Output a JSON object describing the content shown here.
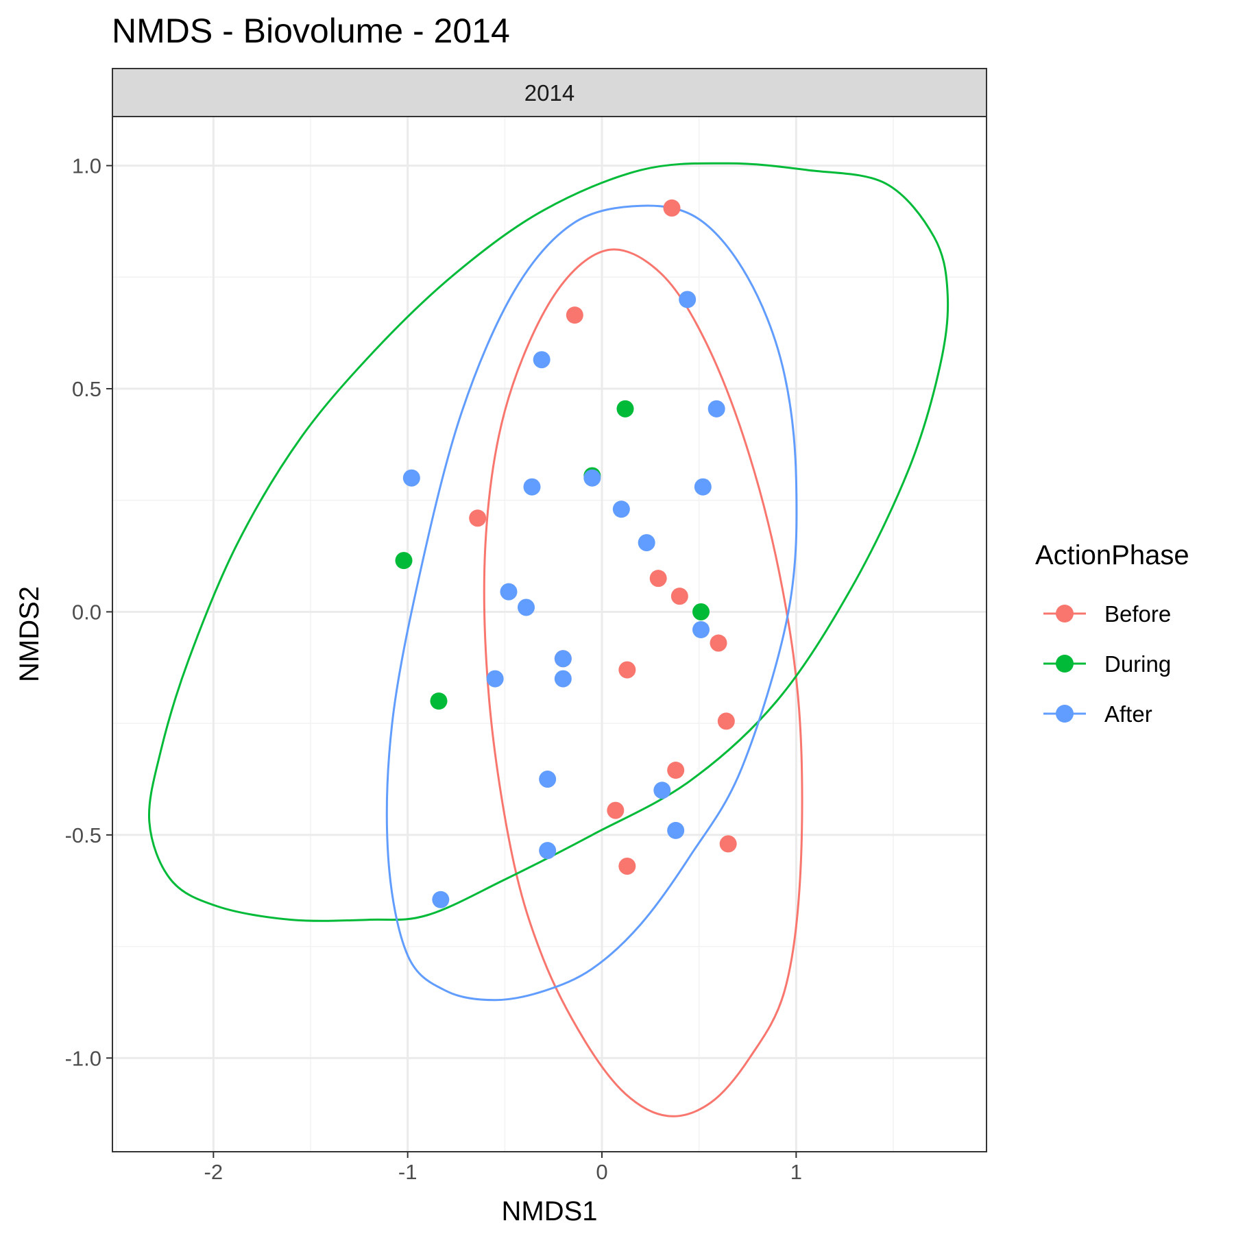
{
  "chart_data": {
    "type": "scatter",
    "title": "NMDS - Biovolume - 2014",
    "facet_label": "2014",
    "xlabel": "NMDS1",
    "ylabel": "NMDS2",
    "xlim": [
      -2.52,
      1.98
    ],
    "ylim": [
      -1.21,
      1.11
    ],
    "xticks": [
      -2,
      -1,
      0,
      1
    ],
    "xtick_labels": [
      "-2",
      "-1",
      "0",
      "1"
    ],
    "yticks": [
      -1.0,
      -0.5,
      0.0,
      0.5,
      1.0
    ],
    "ytick_labels": [
      "-1.0",
      "-0.5",
      "0.0",
      "0.5",
      "1.0"
    ],
    "grid": true,
    "legend": {
      "title": "ActionPhase",
      "position": "right"
    },
    "series": [
      {
        "name": "Before",
        "color": "#F8766D",
        "points": [
          [
            0.36,
            0.905
          ],
          [
            -0.14,
            0.665
          ],
          [
            -0.64,
            0.21
          ],
          [
            0.29,
            0.075
          ],
          [
            0.4,
            0.035
          ],
          [
            0.6,
            -0.07
          ],
          [
            -0.2,
            -0.105
          ],
          [
            0.13,
            -0.13
          ],
          [
            0.64,
            -0.245
          ],
          [
            0.38,
            -0.355
          ],
          [
            0.07,
            -0.445
          ],
          [
            0.13,
            -0.57
          ],
          [
            0.65,
            -0.52
          ]
        ],
        "ellipse": {
          "center": [
            0.14,
            -0.16
          ],
          "path": [
            [
              0.02,
              0.81
            ],
            [
              -0.26,
              0.7
            ],
            [
              -0.5,
              0.45
            ],
            [
              -0.6,
              0.15
            ],
            [
              -0.58,
              -0.2
            ],
            [
              -0.46,
              -0.55
            ],
            [
              -0.3,
              -0.78
            ],
            [
              -0.09,
              -0.96
            ],
            [
              0.12,
              -1.08
            ],
            [
              0.34,
              -1.13
            ],
            [
              0.56,
              -1.1
            ],
            [
              0.76,
              -1.0
            ],
            [
              0.94,
              -0.85
            ],
            [
              1.02,
              -0.6
            ],
            [
              1.02,
              -0.25
            ],
            [
              0.93,
              0.05
            ],
            [
              0.76,
              0.35
            ],
            [
              0.54,
              0.6
            ],
            [
              0.3,
              0.76
            ]
          ]
        }
      },
      {
        "name": "During",
        "color": "#00BA38",
        "points": [
          [
            0.12,
            0.455
          ],
          [
            -0.05,
            0.305
          ],
          [
            -1.02,
            0.115
          ],
          [
            0.51,
            0.0
          ],
          [
            -0.84,
            -0.2
          ]
        ],
        "ellipse": {
          "center": [
            -0.27,
            0.155
          ],
          "path": [
            [
              0.65,
              1.005
            ],
            [
              0.2,
              0.99
            ],
            [
              -0.3,
              0.9
            ],
            [
              -0.75,
              0.76
            ],
            [
              -1.16,
              0.59
            ],
            [
              -1.55,
              0.39
            ],
            [
              -1.88,
              0.15
            ],
            [
              -2.13,
              -0.11
            ],
            [
              -2.27,
              -0.31
            ],
            [
              -2.33,
              -0.47
            ],
            [
              -2.22,
              -0.6
            ],
            [
              -1.98,
              -0.66
            ],
            [
              -1.6,
              -0.69
            ],
            [
              -1.2,
              -0.69
            ],
            [
              -0.9,
              -0.68
            ],
            [
              -0.5,
              -0.6
            ],
            [
              -0.05,
              -0.5
            ],
            [
              0.45,
              -0.38
            ],
            [
              0.9,
              -0.2
            ],
            [
              1.28,
              0.05
            ],
            [
              1.58,
              0.32
            ],
            [
              1.74,
              0.55
            ],
            [
              1.78,
              0.71
            ],
            [
              1.71,
              0.84
            ],
            [
              1.46,
              0.96
            ],
            [
              1.06,
              0.99
            ]
          ]
        }
      },
      {
        "name": "After",
        "color": "#619CFF",
        "points": [
          [
            0.44,
            0.7
          ],
          [
            -0.31,
            0.565
          ],
          [
            0.59,
            0.455
          ],
          [
            -0.98,
            0.3
          ],
          [
            -0.36,
            0.28
          ],
          [
            -0.05,
            0.3
          ],
          [
            0.52,
            0.28
          ],
          [
            0.1,
            0.23
          ],
          [
            0.23,
            0.155
          ],
          [
            -0.48,
            0.045
          ],
          [
            -0.39,
            0.01
          ],
          [
            0.51,
            -0.04
          ],
          [
            -0.2,
            -0.105
          ],
          [
            -0.55,
            -0.15
          ],
          [
            -0.2,
            -0.15
          ],
          [
            -0.28,
            -0.375
          ],
          [
            0.31,
            -0.4
          ],
          [
            0.38,
            -0.49
          ],
          [
            -0.28,
            -0.535
          ],
          [
            -0.83,
            -0.645
          ]
        ],
        "ellipse": {
          "center": [
            0.06,
            0.05
          ],
          "path": [
            [
              0.2,
              0.91
            ],
            [
              -0.15,
              0.87
            ],
            [
              -0.45,
              0.72
            ],
            [
              -0.72,
              0.45
            ],
            [
              -0.93,
              0.1
            ],
            [
              -1.08,
              -0.25
            ],
            [
              -1.1,
              -0.55
            ],
            [
              -1.0,
              -0.77
            ],
            [
              -0.8,
              -0.85
            ],
            [
              -0.55,
              -0.87
            ],
            [
              -0.3,
              -0.85
            ],
            [
              -0.05,
              -0.8
            ],
            [
              0.2,
              -0.7
            ],
            [
              0.45,
              -0.55
            ],
            [
              0.72,
              -0.35
            ],
            [
              0.96,
              0.0
            ],
            [
              1.0,
              0.3
            ],
            [
              0.93,
              0.55
            ],
            [
              0.75,
              0.75
            ],
            [
              0.5,
              0.88
            ]
          ]
        }
      }
    ]
  }
}
